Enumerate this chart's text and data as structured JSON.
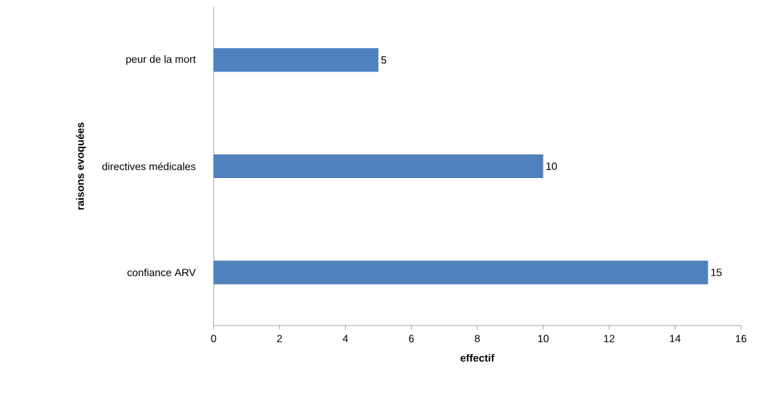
{
  "chart_data": {
    "type": "bar",
    "orientation": "horizontal",
    "categories": [
      "peur de la mort",
      "directives médicales",
      "confiance ARV"
    ],
    "values": [
      5,
      10,
      15
    ],
    "color": "#4f81bd",
    "xlim": [
      0,
      16
    ],
    "xticks": [
      0,
      2,
      4,
      6,
      8,
      10,
      12,
      14,
      16
    ],
    "xlabel": "effectif",
    "ylabel": "raisons evoquées",
    "data_labels": true
  }
}
